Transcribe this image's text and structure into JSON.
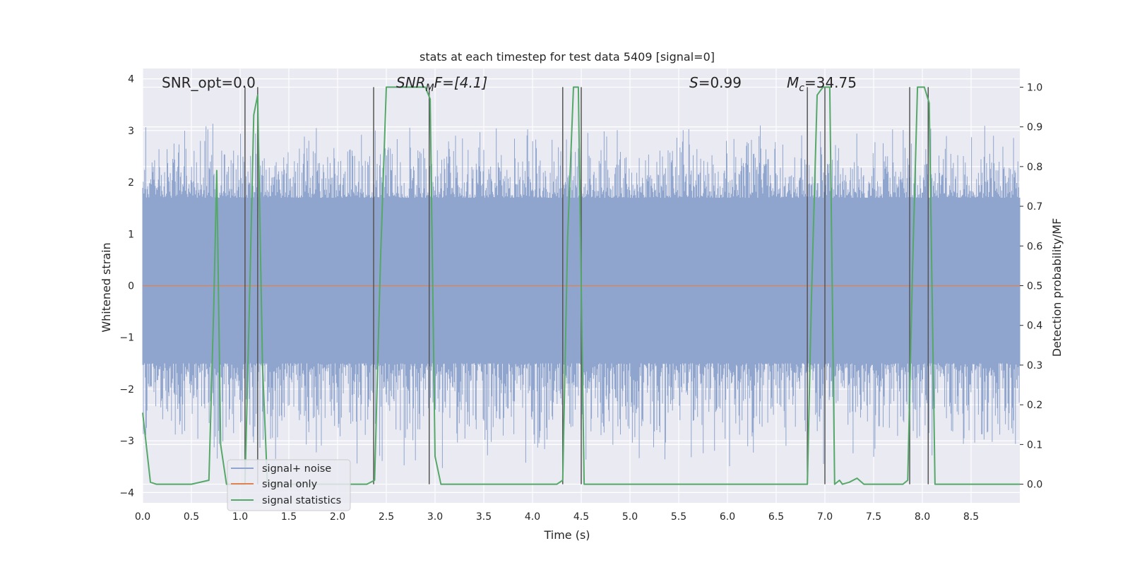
{
  "chart_data": {
    "type": "line",
    "title": "stats at each timestep for test data 5409 [signal=0]",
    "xlabel": "Time (s)",
    "ylabel": "Whitened strain",
    "y2label": "Detection probability/MF",
    "xlim": [
      0.0,
      9.0
    ],
    "ylim": [
      -4.2,
      4.2
    ],
    "y2lim": [
      -0.047,
      1.047
    ],
    "xticks": [
      0.0,
      0.5,
      1.0,
      1.5,
      2.0,
      2.5,
      3.0,
      3.5,
      4.0,
      4.5,
      5.0,
      5.5,
      6.0,
      6.5,
      7.0,
      7.5,
      8.0,
      8.5
    ],
    "xtick_labels": [
      "0.0",
      "0.5",
      "1.0",
      "1.5",
      "2.0",
      "2.5",
      "3.0",
      "3.5",
      "4.0",
      "4.5",
      "5.0",
      "5.5",
      "6.0",
      "6.5",
      "7.0",
      "7.5",
      "8.0",
      "8.5"
    ],
    "yticks": [
      -4,
      -3,
      -2,
      -1,
      0,
      1,
      2,
      3,
      4
    ],
    "ytick_labels": [
      "−4",
      "−3",
      "−2",
      "−1",
      "0",
      "1",
      "2",
      "3",
      "4"
    ],
    "y2ticks": [
      0.0,
      0.1,
      0.2,
      0.3,
      0.4,
      0.5,
      0.6,
      0.7,
      0.8,
      0.9,
      1.0
    ],
    "y2tick_labels": [
      "0.0",
      "0.1",
      "0.2",
      "0.3",
      "0.4",
      "0.5",
      "0.6",
      "0.7",
      "0.8",
      "0.9",
      "1.0"
    ],
    "grid": true,
    "legend_position": "lower-left",
    "annotations": {
      "snr_opt": "SNR_opt=0.0",
      "snr_mf_main": "SNR",
      "snr_mf_sub": "M",
      "snr_mf_rest": "F=[4.1]",
      "s_main": "S",
      "s_rest": "=0.99",
      "mc_main": "M",
      "mc_sub": "c",
      "mc_rest": "=34.75"
    },
    "series": [
      {
        "name": "signal+ noise",
        "color": "#8fa5ce",
        "kind": "noise",
        "envelope": {
          "band": [
            -1.5,
            1.7
          ],
          "peaks_high": [
            2.3,
            3.2
          ],
          "peaks_low": [
            -2.4,
            -3.6
          ],
          "x_range": [
            0.0,
            9.0
          ]
        }
      },
      {
        "name": "signal only",
        "color": "#dd8452",
        "x": [
          0.0,
          9.0
        ],
        "y": [
          0.0,
          0.0
        ]
      },
      {
        "name": "signal statistics",
        "color": "#55a868",
        "axis": "right",
        "x": [
          0.0,
          0.08,
          0.14,
          0.3,
          0.5,
          0.68,
          0.73,
          0.76,
          0.8,
          0.86,
          1.0,
          1.05,
          1.1,
          1.14,
          1.18,
          1.23,
          1.28,
          1.34,
          1.5,
          2.0,
          2.3,
          2.38,
          2.44,
          2.5,
          2.6,
          2.9,
          2.95,
          3.0,
          3.06,
          3.1,
          3.5,
          4.0,
          4.25,
          4.31,
          4.36,
          4.42,
          4.47,
          4.53,
          4.6,
          5.0,
          5.5,
          6.0,
          6.5,
          6.82,
          6.86,
          6.92,
          6.98,
          7.05,
          7.1,
          7.15,
          7.18,
          7.25,
          7.33,
          7.4,
          7.5,
          7.8,
          7.85,
          7.9,
          7.95,
          8.02,
          8.07,
          8.13,
          8.18,
          8.5,
          9.0
        ],
        "y": [
          0.18,
          0.005,
          0.0,
          0.0,
          0.0,
          0.01,
          0.45,
          0.79,
          0.1,
          0.0,
          0.0,
          0.0,
          0.5,
          0.93,
          0.98,
          0.3,
          0.0,
          0.0,
          0.0,
          0.0,
          0.0,
          0.01,
          0.56,
          1.0,
          1.0,
          1.0,
          0.97,
          0.07,
          0.0,
          0.0,
          0.0,
          0.0,
          0.0,
          0.01,
          0.62,
          1.0,
          1.0,
          0.0,
          0.0,
          0.0,
          0.0,
          0.0,
          0.0,
          0.0,
          0.45,
          0.98,
          1.0,
          1.0,
          0.0,
          0.01,
          0.0,
          0.005,
          0.015,
          0.0,
          0.0,
          0.0,
          0.01,
          0.55,
          1.0,
          1.0,
          0.96,
          0.0,
          0.0,
          0.0,
          0.0
        ]
      }
    ],
    "vertical_markers": [
      1.05,
      1.18,
      2.37,
      2.94,
      4.31,
      4.5,
      6.82,
      7.0,
      7.87,
      8.06
    ],
    "marker_color": "#555555"
  }
}
